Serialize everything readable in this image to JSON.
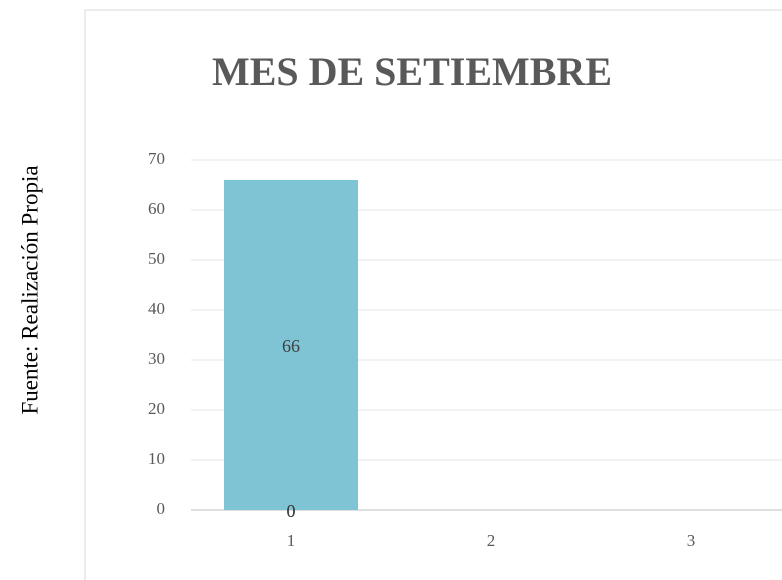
{
  "source": "Fuente: Realización Propia",
  "chart_data": {
    "type": "bar",
    "title": "MES DE SETIEMBRE",
    "categories": [
      "1",
      "2",
      "3"
    ],
    "series": [
      {
        "color": "#7fc4d5",
        "values": [
          66,
          null,
          null
        ]
      },
      {
        "color": "#7fc4d5",
        "values": [
          0,
          null,
          null
        ]
      },
      {
        "color": "#7fc4d5",
        "values": [
          0,
          null,
          null
        ]
      }
    ],
    "ylim": [
      0,
      70
    ],
    "yticks": [
      0,
      10,
      20,
      30,
      40,
      50,
      60,
      70
    ],
    "grid": true
  }
}
